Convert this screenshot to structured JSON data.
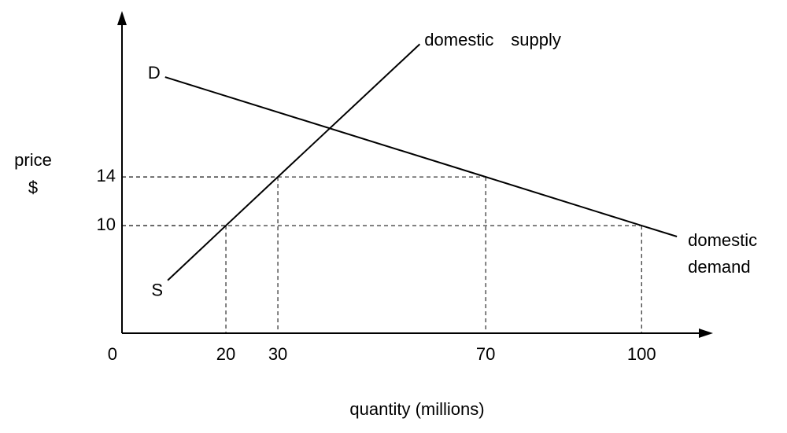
{
  "chart_data": {
    "type": "line",
    "xlabel": "quantity (millions)",
    "ylabel": [
      "price",
      "$"
    ],
    "xlim": [
      0,
      113.6
    ],
    "ylim": [
      1.16,
      27.5
    ],
    "xticks": [
      0,
      20,
      30,
      70,
      100
    ],
    "yticks": [
      10,
      14
    ],
    "dashed_guides": true,
    "color": "#000000",
    "series": [
      {
        "name": [
          "domestic",
          "supply"
        ],
        "start_label": "S",
        "color": "#000000",
        "x": [
          8.8,
          20,
          30,
          57.3
        ],
        "y": [
          5.5,
          10,
          14,
          24.9
        ]
      },
      {
        "name": [
          "domestic",
          "demand"
        ],
        "start_label": "D",
        "color": "#000000",
        "x": [
          8.3,
          70,
          100,
          106.8
        ],
        "y": [
          22.2,
          14,
          10,
          9.1
        ]
      }
    ]
  }
}
